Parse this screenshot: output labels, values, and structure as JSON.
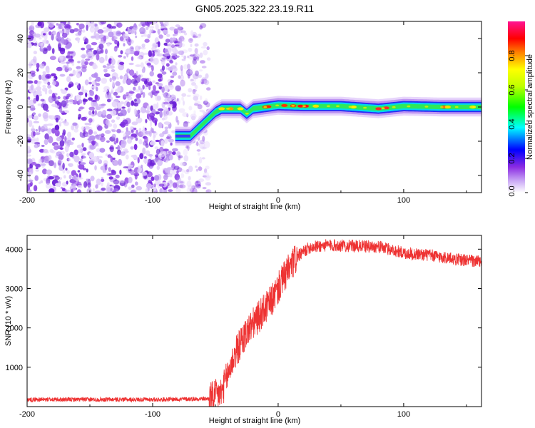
{
  "title": "GN05.2025.322.23.19.R11",
  "spectrogram": {
    "xlabel": "Height of straight line (km)",
    "ylabel": "Frequency (Hz)",
    "xlim": [
      -200,
      162
    ],
    "ylim": [
      -50,
      50
    ],
    "xticks": [
      -200,
      -100,
      0,
      100
    ],
    "xtick_labels": [
      "-200",
      "-100",
      "0",
      "100"
    ],
    "yticks": [
      -40,
      -20,
      0,
      20,
      40
    ],
    "ytick_labels": [
      "-40",
      "-20",
      "0",
      "20",
      "40"
    ],
    "track": [
      [
        -80,
        -17
      ],
      [
        -70,
        -17
      ],
      [
        -60,
        -10
      ],
      [
        -50,
        -3
      ],
      [
        -45,
        -1
      ],
      [
        -40,
        -1
      ],
      [
        -30,
        -1
      ],
      [
        -25,
        -4
      ],
      [
        -20,
        -1
      ],
      [
        0,
        1
      ],
      [
        20,
        0.5
      ],
      [
        50,
        0.5
      ],
      [
        80,
        -1
      ],
      [
        100,
        0.5
      ],
      [
        130,
        0
      ],
      [
        162,
        0
      ]
    ],
    "noise_region_x": [
      -200,
      -60
    ]
  },
  "colorbar": {
    "label": "Normalized spectral amplitude",
    "ticks": [
      0.0,
      0.2,
      0.4,
      0.6,
      0.8
    ],
    "tick_labels": [
      "0.0",
      "0.2",
      "0.4",
      "0.6",
      "0.8"
    ],
    "colors": [
      "#ffffff",
      "#8a2be2",
      "#0000ff",
      "#00ffff",
      "#00ff00",
      "#ffff00",
      "#ff7f00",
      "#ff0000",
      "#ff1493"
    ]
  },
  "snr": {
    "xlabel": "Height of straight line (km)",
    "ylabel": "SNR (10 * v/v)",
    "xlim": [
      -200,
      162
    ],
    "ylim": [
      0,
      4350
    ],
    "xticks": [
      -200,
      -100,
      0,
      100
    ],
    "xtick_labels": [
      "-200",
      "-100",
      "0",
      "100"
    ],
    "yticks": [
      1000,
      2000,
      3000,
      4000
    ],
    "ytick_labels": [
      "1000",
      "2000",
      "3000",
      "4000"
    ],
    "color": "#ee3333",
    "envelope": [
      [
        -200,
        180
      ],
      [
        -100,
        180
      ],
      [
        -55,
        200
      ],
      [
        -45,
        350
      ],
      [
        -35,
        1300
      ],
      [
        -25,
        1900
      ],
      [
        -15,
        2300
      ],
      [
        -5,
        2700
      ],
      [
        5,
        3300
      ],
      [
        15,
        3800
      ],
      [
        25,
        4050
      ],
      [
        40,
        4100
      ],
      [
        60,
        4080
      ],
      [
        80,
        4060
      ],
      [
        95,
        3950
      ],
      [
        100,
        3900
      ],
      [
        120,
        3850
      ],
      [
        140,
        3750
      ],
      [
        162,
        3680
      ]
    ]
  }
}
